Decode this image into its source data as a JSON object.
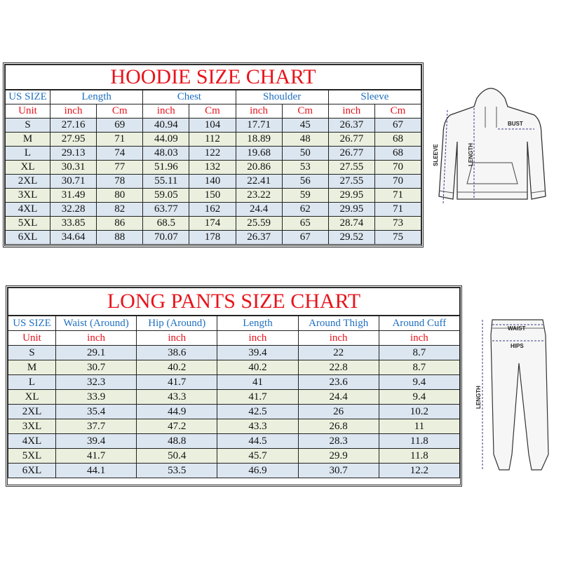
{
  "hoodie": {
    "title": "HOODIE SIZE CHART",
    "size_header": "US SIZE",
    "unit_label": "Unit",
    "measures": [
      "Length",
      "Chest",
      "Shoulder",
      "Sleeve"
    ],
    "units": [
      "inch",
      "Cm"
    ],
    "rows": [
      [
        "S",
        "27.16",
        "69",
        "40.94",
        "104",
        "17.71",
        "45",
        "26.37",
        "67"
      ],
      [
        "M",
        "27.95",
        "71",
        "44.09",
        "112",
        "18.89",
        "48",
        "26.77",
        "68"
      ],
      [
        "L",
        "29.13",
        "74",
        "48.03",
        "122",
        "19.68",
        "50",
        "26.77",
        "68"
      ],
      [
        "XL",
        "30.31",
        "77",
        "51.96",
        "132",
        "20.86",
        "53",
        "27.55",
        "70"
      ],
      [
        "2XL",
        "30.71",
        "78",
        "55.11",
        "140",
        "22.41",
        "56",
        "27.55",
        "70"
      ],
      [
        "3XL",
        "31.49",
        "80",
        "59.05",
        "150",
        "23.22",
        "59",
        "29.95",
        "71"
      ],
      [
        "4XL",
        "32.28",
        "82",
        "63.77",
        "162",
        "24.4",
        "62",
        "29.95",
        "71"
      ],
      [
        "5XL",
        "33.85",
        "86",
        "68.5",
        "174",
        "25.59",
        "65",
        "28.74",
        "73"
      ],
      [
        "6XL",
        "34.64",
        "88",
        "70.07",
        "178",
        "26.37",
        "67",
        "29.52",
        "75"
      ]
    ],
    "diagram_labels": {
      "bust": "BUST",
      "length": "LENGTH",
      "sleeve": "SLEEVE"
    }
  },
  "pants": {
    "title": "LONG PANTS SIZE CHART",
    "size_header": "US SIZE",
    "unit_label": "Unit",
    "measures": [
      "Waist (Around)",
      "Hip (Around)",
      "Length",
      "Around Thigh",
      "Around Cuff"
    ],
    "unit": "inch",
    "rows": [
      [
        "S",
        "29.1",
        "38.6",
        "39.4",
        "22",
        "8.7"
      ],
      [
        "M",
        "30.7",
        "40.2",
        "40.2",
        "22.8",
        "8.7"
      ],
      [
        "L",
        "32.3",
        "41.7",
        "41",
        "23.6",
        "9.4"
      ],
      [
        "XL",
        "33.9",
        "43.3",
        "41.7",
        "24.4",
        "9.4"
      ],
      [
        "2XL",
        "35.4",
        "44.9",
        "42.5",
        "26",
        "10.2"
      ],
      [
        "3XL",
        "37.7",
        "47.2",
        "43.3",
        "26.8",
        "11"
      ],
      [
        "4XL",
        "39.4",
        "48.8",
        "44.5",
        "28.3",
        "11.8"
      ],
      [
        "5XL",
        "41.7",
        "50.4",
        "45.7",
        "29.9",
        "11.8"
      ],
      [
        "6XL",
        "44.1",
        "53.5",
        "46.9",
        "30.7",
        "12.2"
      ]
    ],
    "diagram_labels": {
      "waist": "WAIST",
      "hips": "HIPS",
      "length": "LENGTH"
    }
  },
  "colors": {
    "title": "#e8141c",
    "header": "#1e6fc0",
    "row_blue": "#dce6f0",
    "row_cream": "#ebf0de"
  }
}
